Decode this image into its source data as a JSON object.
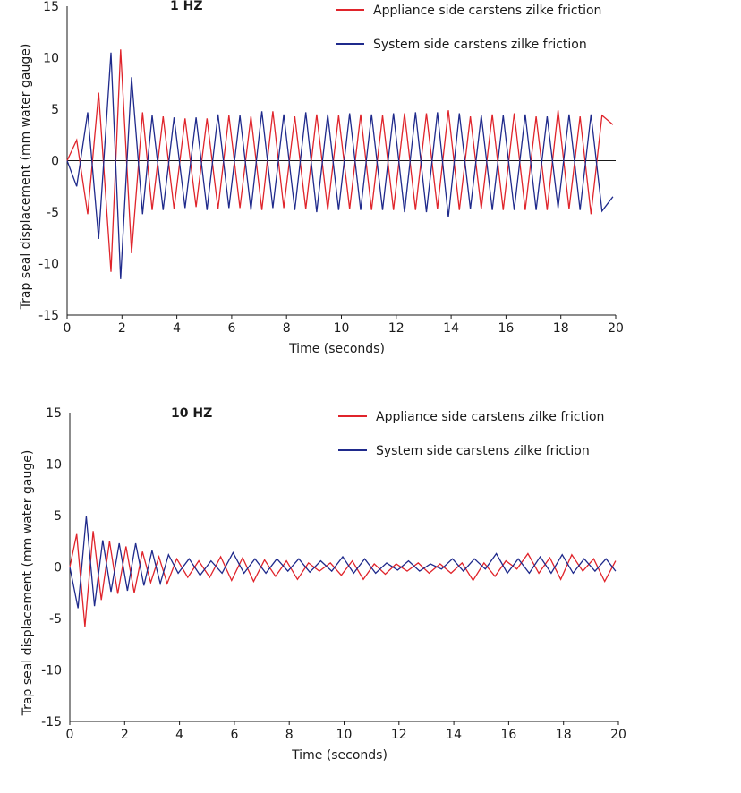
{
  "chart_data": [
    {
      "type": "line",
      "title": "1 HZ",
      "xlabel": "Time (seconds)",
      "ylabel": "Trap seal displacement (mm water gauge)",
      "xlim": [
        0,
        20
      ],
      "ylim": [
        -15,
        15
      ],
      "x_ticks": [
        "0",
        "2",
        "4",
        "6",
        "8",
        "10",
        "12",
        "14",
        "16",
        "18",
        "20"
      ],
      "y_ticks": [
        "15",
        "10",
        "5",
        "0",
        "-5",
        "-10",
        "-15"
      ],
      "legend_position": "top-right",
      "series": [
        {
          "name": "Appliance side carstens zilke friction",
          "color": "#e0242b",
          "x": [
            0,
            0.35,
            0.75,
            1.15,
            1.6,
            1.95,
            2.35,
            2.75,
            3.1,
            3.5,
            3.9,
            4.3,
            4.7,
            5.1,
            5.5,
            5.9,
            6.3,
            6.7,
            7.1,
            7.5,
            7.9,
            8.3,
            8.7,
            9.1,
            9.5,
            9.9,
            10.3,
            10.7,
            11.1,
            11.5,
            11.9,
            12.3,
            12.7,
            13.1,
            13.5,
            13.9,
            14.3,
            14.7,
            15.1,
            15.5,
            15.9,
            16.3,
            16.7,
            17.1,
            17.5,
            17.9,
            18.3,
            18.7,
            19.1,
            19.5,
            19.9
          ],
          "y": [
            0,
            2,
            -5.2,
            6.6,
            -10.8,
            10.8,
            -9,
            4.7,
            -4.8,
            4.3,
            -4.7,
            4.1,
            -4.5,
            4.1,
            -4.7,
            4.4,
            -4.6,
            4.3,
            -4.8,
            4.8,
            -4.6,
            4.3,
            -4.7,
            4.5,
            -4.8,
            4.4,
            -4.7,
            4.5,
            -4.8,
            4.4,
            -4.8,
            4.6,
            -4.8,
            4.6,
            -4.7,
            4.9,
            -4.8,
            4.3,
            -4.7,
            4.5,
            -4.8,
            4.6,
            -4.8,
            4.3,
            -4.8,
            4.9,
            -4.7,
            4.3,
            -5.2,
            4.4,
            3.5
          ]
        },
        {
          "name": "System side carstens zilke friction",
          "color": "#1f2a8c",
          "x": [
            0,
            0.35,
            0.75,
            1.15,
            1.6,
            1.95,
            2.35,
            2.75,
            3.1,
            3.5,
            3.9,
            4.3,
            4.7,
            5.1,
            5.5,
            5.9,
            6.3,
            6.7,
            7.1,
            7.5,
            7.9,
            8.3,
            8.7,
            9.1,
            9.5,
            9.9,
            10.3,
            10.7,
            11.1,
            11.5,
            11.9,
            12.3,
            12.7,
            13.1,
            13.5,
            13.9,
            14.3,
            14.7,
            15.1,
            15.5,
            15.9,
            16.3,
            16.7,
            17.1,
            17.5,
            17.9,
            18.3,
            18.7,
            19.1,
            19.5,
            19.9
          ],
          "y": [
            0,
            -2.5,
            4.7,
            -7.6,
            10.5,
            -11.5,
            8.1,
            -5.2,
            4.4,
            -4.8,
            4.2,
            -4.6,
            4.2,
            -4.8,
            4.5,
            -4.6,
            4.4,
            -4.8,
            4.8,
            -4.6,
            4.5,
            -4.8,
            4.7,
            -5,
            4.5,
            -4.8,
            4.6,
            -4.8,
            4.5,
            -4.8,
            4.6,
            -5,
            4.7,
            -5,
            4.7,
            -5.5,
            4.6,
            -4.7,
            4.4,
            -4.8,
            4.4,
            -4.8,
            4.5,
            -4.8,
            4.3,
            -4.6,
            4.5,
            -4.8,
            4.5,
            -4.9,
            -3.5
          ]
        }
      ]
    },
    {
      "type": "line",
      "title": "10 HZ",
      "xlabel": "Time (seconds)",
      "ylabel": "Trap seal displacement (mm water gauge)",
      "xlim": [
        0,
        20
      ],
      "ylim": [
        -15,
        15
      ],
      "x_ticks": [
        "0",
        "2",
        "4",
        "6",
        "8",
        "10",
        "12",
        "14",
        "16",
        "18",
        "20"
      ],
      "y_ticks": [
        "15",
        "10",
        "5",
        "0",
        "-5",
        "-10",
        "-15"
      ],
      "legend_position": "top-right",
      "series": [
        {
          "name": "Appliance side carstens zilke friction",
          "color": "#e0242b",
          "x": [
            0,
            0.25,
            0.55,
            0.85,
            1.15,
            1.45,
            1.75,
            2.05,
            2.35,
            2.65,
            2.95,
            3.25,
            3.55,
            3.9,
            4.3,
            4.7,
            5.1,
            5.5,
            5.9,
            6.3,
            6.7,
            7.1,
            7.5,
            7.9,
            8.3,
            8.7,
            9.1,
            9.5,
            9.9,
            10.3,
            10.7,
            11.1,
            11.5,
            11.9,
            12.3,
            12.7,
            13.1,
            13.5,
            13.9,
            14.3,
            14.7,
            15.1,
            15.5,
            15.9,
            16.3,
            16.7,
            17.1,
            17.5,
            17.9,
            18.3,
            18.7,
            19.1,
            19.5,
            19.9
          ],
          "y": [
            0,
            3.2,
            -5.8,
            3.5,
            -3.2,
            2.5,
            -2.6,
            2,
            -2.5,
            1.5,
            -1.5,
            1,
            -1.6,
            0.8,
            -1,
            0.6,
            -1,
            1,
            -1.3,
            0.9,
            -1.4,
            0.7,
            -0.9,
            0.6,
            -1.2,
            0.4,
            -0.4,
            0.4,
            -0.8,
            0.6,
            -1.2,
            0.3,
            -0.7,
            0.3,
            -0.4,
            0.4,
            -0.6,
            0.3,
            -0.6,
            0.4,
            -1.3,
            0.4,
            -0.9,
            0.6,
            -0.2,
            1.3,
            -0.6,
            0.9,
            -1.2,
            1.2,
            -0.4,
            0.8,
            -1.4,
            0.6
          ]
        },
        {
          "name": "System side carstens zilke friction",
          "color": "#1f2a8c",
          "x": [
            0,
            0.3,
            0.6,
            0.9,
            1.2,
            1.5,
            1.8,
            2.1,
            2.4,
            2.7,
            3,
            3.3,
            3.6,
            3.95,
            4.35,
            4.75,
            5.15,
            5.55,
            5.95,
            6.35,
            6.75,
            7.15,
            7.55,
            7.95,
            8.35,
            8.75,
            9.15,
            9.55,
            9.95,
            10.35,
            10.75,
            11.15,
            11.55,
            11.95,
            12.35,
            12.75,
            13.15,
            13.55,
            13.95,
            14.35,
            14.75,
            15.15,
            15.55,
            15.95,
            16.35,
            16.75,
            17.15,
            17.55,
            17.95,
            18.35,
            18.75,
            19.15,
            19.55,
            19.9
          ],
          "y": [
            0,
            -4,
            4.9,
            -3.8,
            2.6,
            -2.4,
            2.3,
            -2.3,
            2.3,
            -1.8,
            1.6,
            -1.6,
            1.2,
            -0.6,
            0.8,
            -0.8,
            0.6,
            -0.6,
            1.4,
            -0.6,
            0.8,
            -0.6,
            0.8,
            -0.4,
            0.8,
            -0.5,
            0.6,
            -0.4,
            1,
            -0.6,
            0.8,
            -0.6,
            0.4,
            -0.3,
            0.6,
            -0.4,
            0.3,
            -0.2,
            0.8,
            -0.4,
            0.8,
            -0.2,
            1.3,
            -0.6,
            0.8,
            -0.6,
            1,
            -0.6,
            1.2,
            -0.6,
            0.8,
            -0.4,
            0.8,
            -0.4
          ]
        }
      ]
    }
  ]
}
